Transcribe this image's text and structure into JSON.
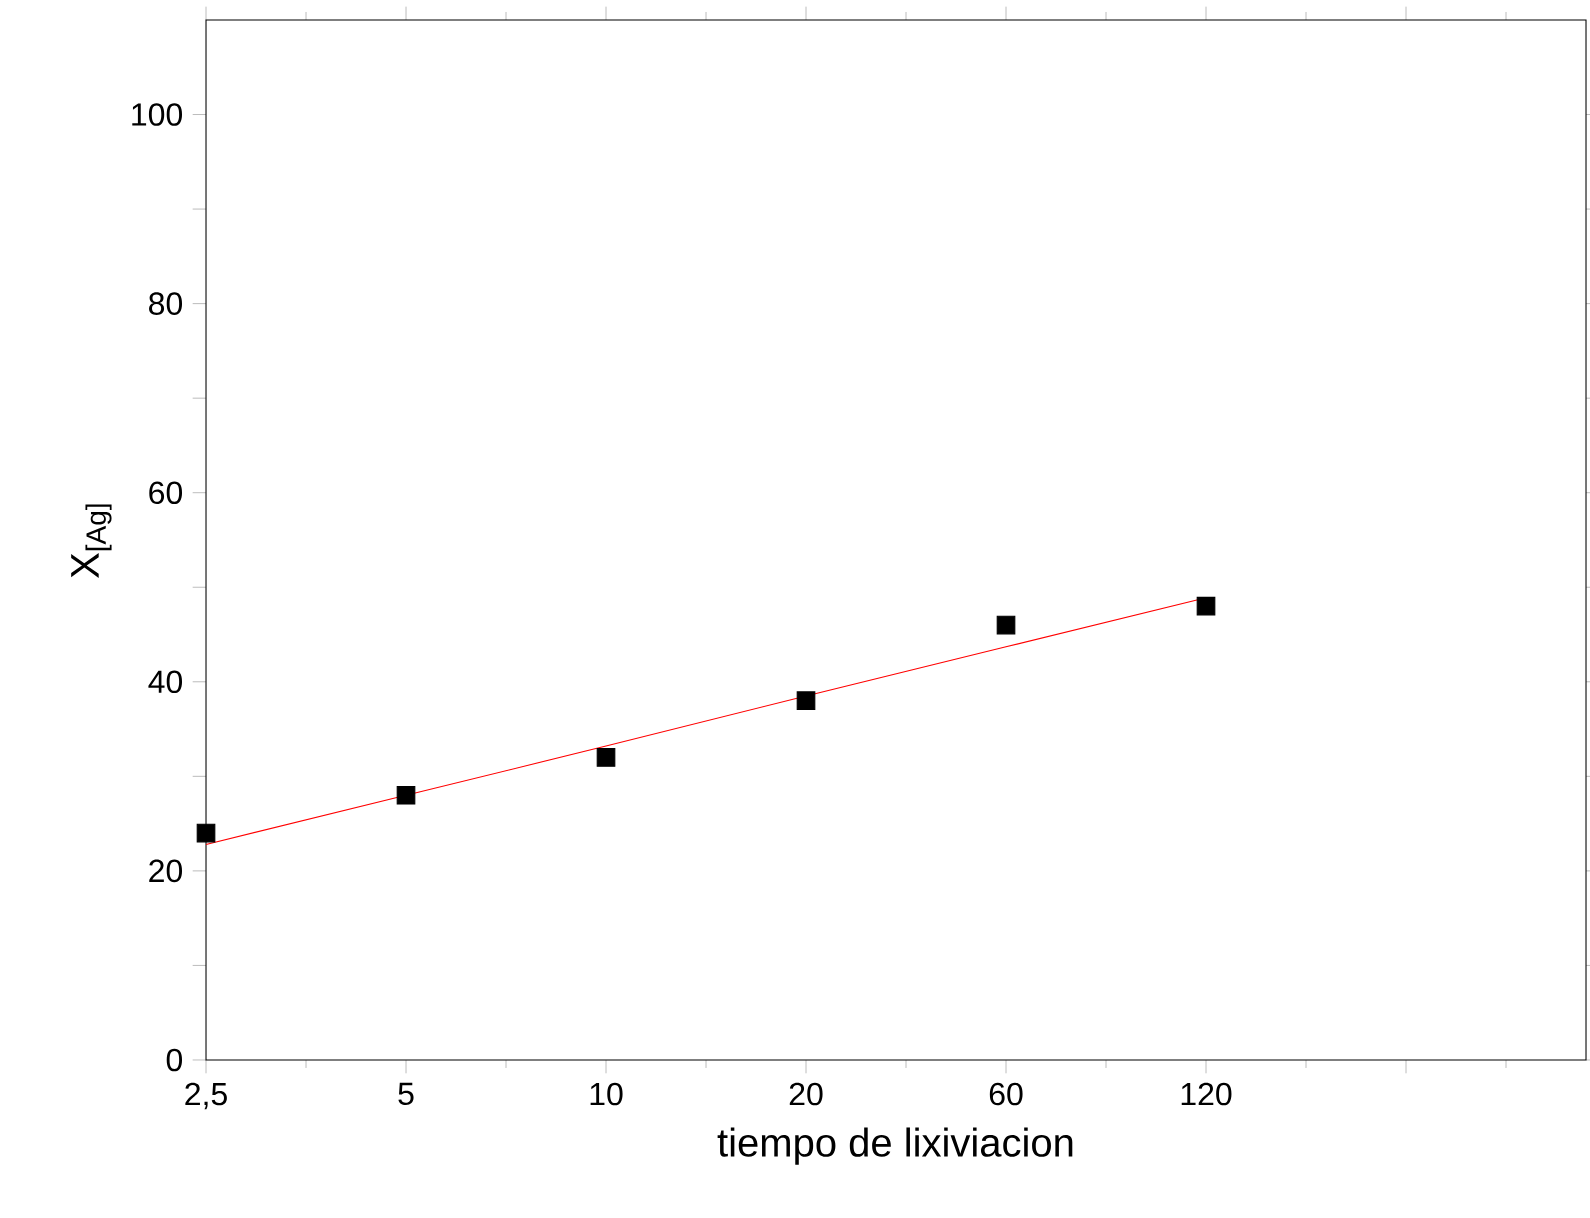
{
  "chart_data": {
    "type": "scatter",
    "xlabel": "tiempo de lixiviacion",
    "ylabel": "X$_{[Ag]}$",
    "categories": [
      "2,5",
      "5",
      "10",
      "20",
      "60",
      "120",
      null
    ],
    "ylim": [
      0,
      110
    ],
    "yticks": [
      0,
      {
        "value": 10,
        "label": null
      },
      20,
      {
        "value": 30,
        "label": null
      },
      40,
      {
        "value": 50,
        "label": null
      },
      60,
      {
        "value": 70,
        "label": null
      },
      80,
      {
        "value": 90,
        "label": null
      },
      100
    ],
    "series": [
      {
        "type": "scatter",
        "color": "#000000",
        "marker": "square",
        "values": [
          24,
          28,
          32,
          38,
          46,
          48,
          null
        ]
      },
      {
        "type": "line",
        "color": "#ff0000",
        "line_style": "solid",
        "marker": "none",
        "values": [
          22.8,
          28.0,
          33.2,
          38.5,
          43.7,
          48.9,
          null
        ]
      }
    ]
  }
}
